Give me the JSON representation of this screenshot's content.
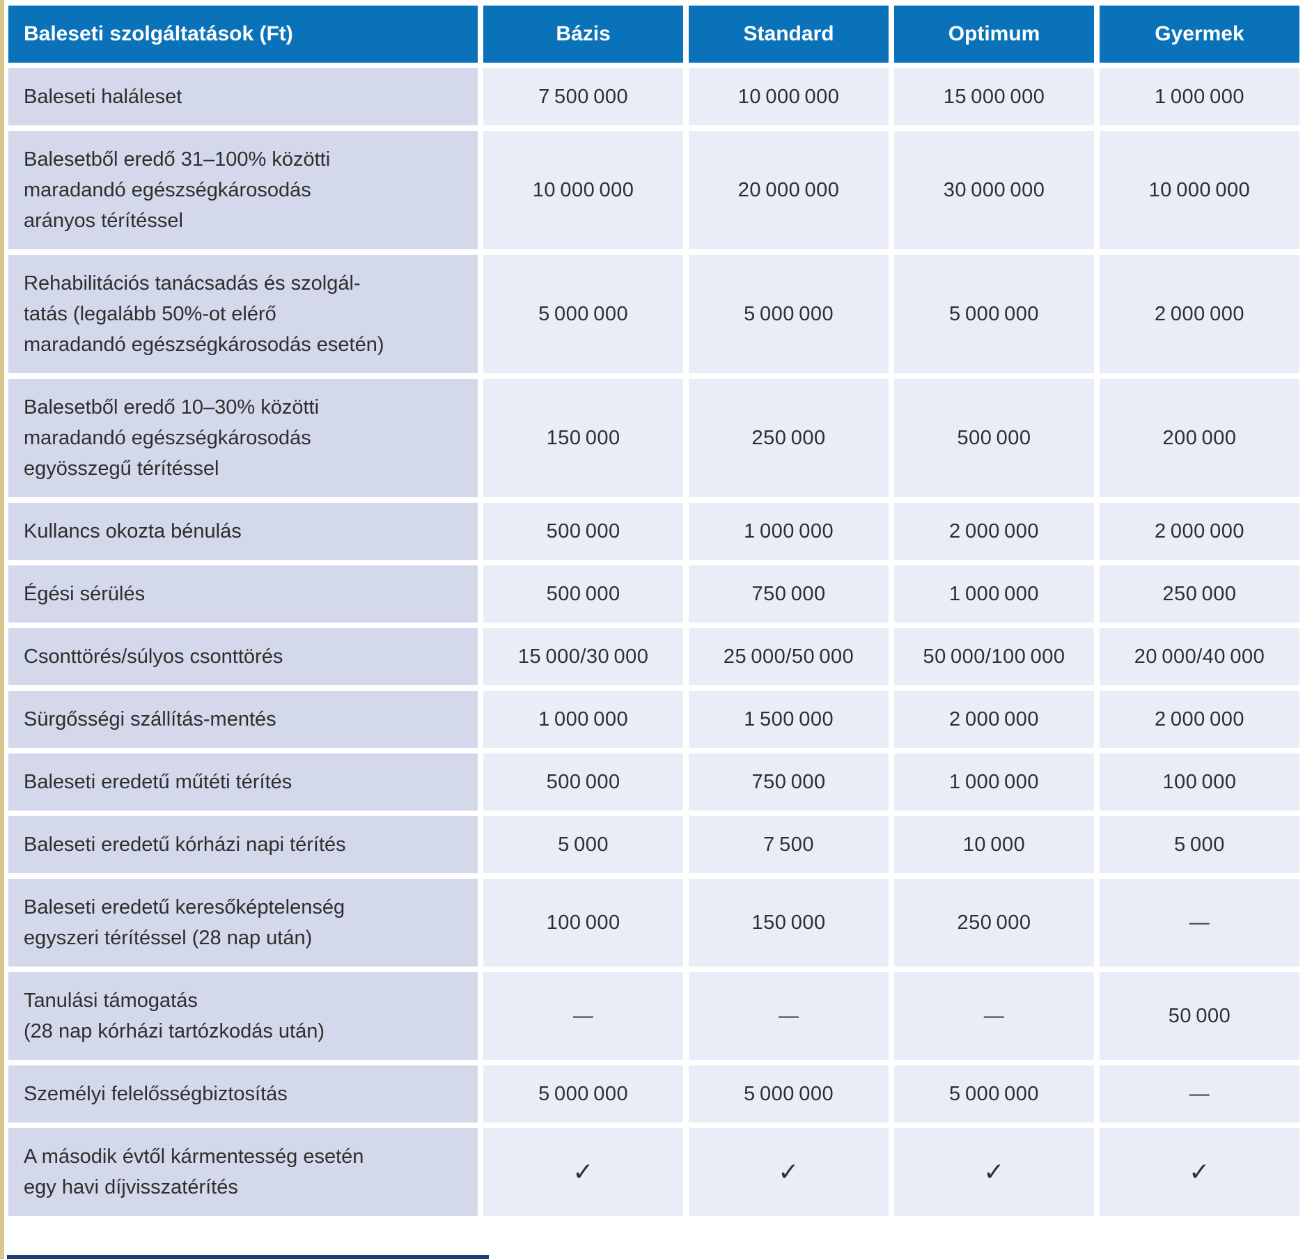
{
  "colors": {
    "header-blue": "#0a72b8",
    "service-cell": "#d3d9eb",
    "value-cell": "#e9edf7",
    "text": "#2e2e2e",
    "left-rule": "#d9c68f",
    "bottom-rule": "#1e3c74"
  },
  "table": {
    "header": {
      "service_label": "Baleseti szolgáltatások (Ft)",
      "plans": [
        "Bázis",
        "Standard",
        "Optimum",
        "Gyermek"
      ]
    },
    "rows": [
      {
        "service": "Baleseti haláleset",
        "values": [
          "7 500 000",
          "10 000 000",
          "15 000 000",
          "1 000 000"
        ]
      },
      {
        "service": "Balesetből eredő 31–100% közötti\nmaradandó egészségkárosodás\narányos térítéssel",
        "values": [
          "10 000 000",
          "20 000 000",
          "30 000 000",
          "10 000 000"
        ]
      },
      {
        "service": "Rehabilitációs tanácsadás és szolgál-\ntatás (legalább 50%-ot elérő\nmaradandó egészségkárosodás esetén)",
        "values": [
          "5 000 000",
          "5 000 000",
          "5 000 000",
          "2 000 000"
        ]
      },
      {
        "service": "Balesetből eredő 10–30% közötti\nmaradandó egészségkárosodás\negyösszegű térítéssel",
        "values": [
          "150 000",
          "250 000",
          "500 000",
          "200 000"
        ]
      },
      {
        "service": "Kullancs okozta bénulás",
        "values": [
          "500 000",
          "1 000 000",
          "2 000 000",
          "2 000 000"
        ]
      },
      {
        "service": "Égési sérülés",
        "values": [
          "500 000",
          "750 000",
          "1 000 000",
          "250 000"
        ]
      },
      {
        "service": "Csonttörés/súlyos csonttörés",
        "values": [
          "15 000/30 000",
          "25 000/50 000",
          "50 000/100 000",
          "20 000/40 000"
        ]
      },
      {
        "service": "Sürgősségi szállítás-mentés",
        "values": [
          "1 000 000",
          "1 500 000",
          "2 000 000",
          "2 000 000"
        ]
      },
      {
        "service": "Baleseti eredetű műtéti térítés",
        "values": [
          "500 000",
          "750 000",
          "1 000 000",
          "100 000"
        ]
      },
      {
        "service": "Baleseti eredetű kórházi napi térítés",
        "values": [
          "5 000",
          "7 500",
          "10 000",
          "5 000"
        ]
      },
      {
        "service": "Baleseti eredetű keresőképtelenség\negyszeri térítéssel (28 nap után)",
        "values": [
          "100 000",
          "150 000",
          "250 000",
          "—"
        ]
      },
      {
        "service": "Tanulási támogatás\n(28 nap kórházi tartózkodás után)",
        "values": [
          "—",
          "—",
          "—",
          "50 000"
        ]
      },
      {
        "service": "Személyi felelősségbiztosítás",
        "values": [
          "5 000 000",
          "5 000 000",
          "5 000 000",
          "—"
        ]
      },
      {
        "service": "A második évtől kármentesség esetén\negy havi díjvisszatérítés",
        "values": [
          "✓",
          "✓",
          "✓",
          "✓"
        ]
      }
    ]
  }
}
